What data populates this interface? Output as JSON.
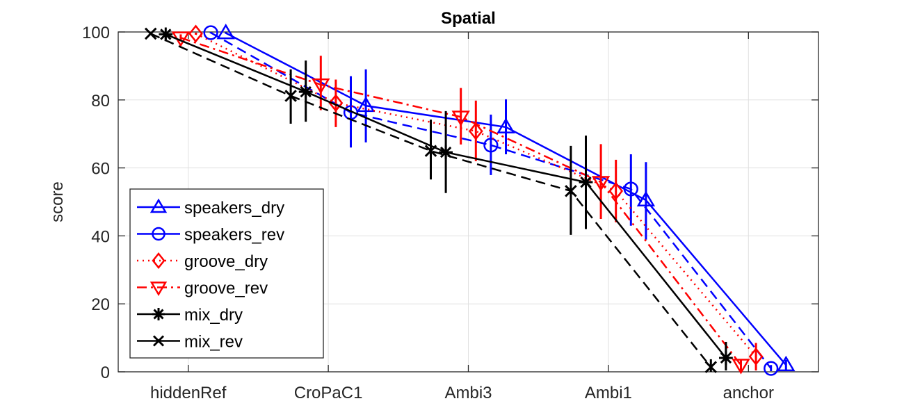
{
  "chart_data": {
    "type": "line",
    "title": "Spatial",
    "xlabel": "",
    "ylabel": "score",
    "ylim": [
      0,
      100
    ],
    "yticks": [
      0,
      20,
      40,
      60,
      80,
      100
    ],
    "grid": true,
    "legend_position": "bottom-left",
    "categories": [
      "hiddenRef",
      "CroPaC1",
      "Ambi3",
      "Ambi1",
      "anchor"
    ],
    "series": [
      {
        "name": "speakers_dry",
        "color": "#0000ff",
        "line_style": "solid",
        "legend_line_style": "solid",
        "marker": "triangle-up",
        "values": [
          99.7,
          78.3,
          72.0,
          50.5,
          2.0
        ],
        "error_low": [
          99.5,
          67.5,
          64.0,
          38.9,
          0.5
        ],
        "error_high": [
          99.9,
          89.0,
          80.2,
          61.7,
          3.5
        ]
      },
      {
        "name": "speakers_rev",
        "color": "#0000ff",
        "line_style": "dashed",
        "legend_line_style": "solid",
        "marker": "circle",
        "values": [
          99.8,
          76.3,
          66.7,
          53.8,
          1.0
        ],
        "error_low": [
          99.6,
          66.0,
          57.9,
          43.0,
          0.2
        ],
        "error_high": [
          100.0,
          87.0,
          75.7,
          64.0,
          2.0
        ]
      },
      {
        "name": "groove_dry",
        "color": "#ff0000",
        "line_style": "dotted",
        "legend_line_style": "dotted",
        "marker": "diamond",
        "values": [
          99.5,
          79.1,
          70.8,
          53.2,
          4.5
        ],
        "error_low": [
          99.2,
          72.0,
          62.0,
          44.0,
          0.4
        ],
        "error_high": [
          99.8,
          86.0,
          79.8,
          62.4,
          8.5
        ]
      },
      {
        "name": "groove_rev",
        "color": "#ff0000",
        "line_style": "dash-dot",
        "legend_line_style": "dash-dot",
        "marker": "triangle-down",
        "values": [
          98.3,
          84.5,
          75.0,
          55.8,
          2.0
        ],
        "error_low": [
          97.3,
          77.0,
          66.9,
          45.0,
          0.0
        ],
        "error_high": [
          99.3,
          93.0,
          83.5,
          67.0,
          3.5
        ]
      },
      {
        "name": "mix_dry",
        "color": "#000000",
        "line_style": "solid",
        "legend_line_style": "solid",
        "marker": "asterisk",
        "values": [
          99.3,
          82.4,
          64.6,
          55.8,
          4.1
        ],
        "error_low": [
          97.8,
          73.6,
          52.6,
          42.0,
          0.4
        ],
        "error_high": [
          100.0,
          91.6,
          76.7,
          69.5,
          8.8
        ]
      },
      {
        "name": "mix_rev",
        "color": "#000000",
        "line_style": "dashed",
        "legend_line_style": "solid",
        "marker": "x",
        "values": [
          99.5,
          81.2,
          65.0,
          53.2,
          1.4
        ],
        "error_low": [
          99.2,
          73.0,
          56.6,
          40.3,
          0.0
        ],
        "error_high": [
          99.8,
          89.0,
          74.2,
          66.5,
          3.7
        ]
      }
    ]
  }
}
